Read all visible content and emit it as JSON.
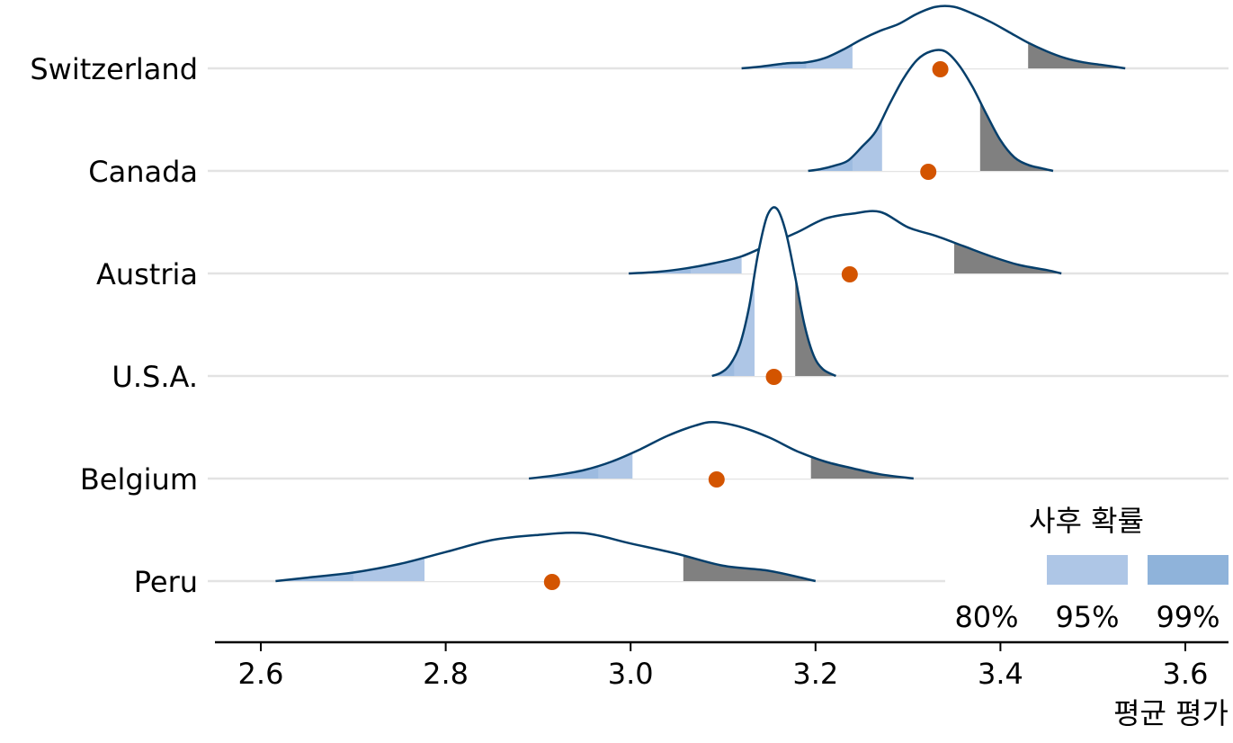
{
  "chart_data": {
    "type": "ridgeline",
    "title": "",
    "xlabel": "평균 평가",
    "ylabel": "",
    "xlim": [
      2.55,
      3.65
    ],
    "xticks": [
      2.6,
      2.8,
      3.0,
      3.2,
      3.4,
      3.6
    ],
    "xtick_labels": [
      "2.6",
      "2.8",
      "3.0",
      "3.2",
      "3.4",
      "3.6"
    ],
    "grid": false,
    "legend": {
      "title": "사후 확률",
      "placement": "bottom-right",
      "entries": [
        {
          "label": "80%",
          "color": "#ffffff"
        },
        {
          "label": "95%",
          "color": "#aec6e6"
        },
        {
          "label": "99%",
          "color": "#8fb3da"
        }
      ]
    },
    "colors": {
      "curve": "#063f6b",
      "tail_low": "#aec6e6",
      "tail_low_outer": "#8fb3da",
      "tail_high": "#808080",
      "point": "#d35400",
      "baseline": "#e3e3e3",
      "axis": "#000000"
    },
    "rows": [
      {
        "name": "Switzerland",
        "point": 3.335,
        "low": 3.24,
        "high": 3.43,
        "low_outer": 3.19,
        "density": [
          [
            3.12,
            0
          ],
          [
            3.14,
            0.01
          ],
          [
            3.17,
            0.03
          ],
          [
            3.19,
            0.035
          ],
          [
            3.21,
            0.06
          ],
          [
            3.23,
            0.11
          ],
          [
            3.25,
            0.17
          ],
          [
            3.27,
            0.22
          ],
          [
            3.29,
            0.26
          ],
          [
            3.31,
            0.32
          ],
          [
            3.33,
            0.36
          ],
          [
            3.35,
            0.36
          ],
          [
            3.37,
            0.32
          ],
          [
            3.39,
            0.27
          ],
          [
            3.41,
            0.21
          ],
          [
            3.43,
            0.15
          ],
          [
            3.45,
            0.1
          ],
          [
            3.47,
            0.06
          ],
          [
            3.49,
            0.035
          ],
          [
            3.51,
            0.02
          ],
          [
            3.535,
            0
          ]
        ]
      },
      {
        "name": "Canada",
        "point": 3.322,
        "low": 3.272,
        "high": 3.378,
        "low_outer": 3.24,
        "density": [
          [
            3.192,
            0
          ],
          [
            3.205,
            0.01
          ],
          [
            3.22,
            0.03
          ],
          [
            3.235,
            0.06
          ],
          [
            3.25,
            0.14
          ],
          [
            3.265,
            0.23
          ],
          [
            3.28,
            0.39
          ],
          [
            3.295,
            0.54
          ],
          [
            3.31,
            0.65
          ],
          [
            3.325,
            0.7
          ],
          [
            3.34,
            0.7
          ],
          [
            3.355,
            0.62
          ],
          [
            3.37,
            0.49
          ],
          [
            3.385,
            0.33
          ],
          [
            3.4,
            0.18
          ],
          [
            3.415,
            0.08
          ],
          [
            3.43,
            0.035
          ],
          [
            3.445,
            0.015
          ],
          [
            3.457,
            0
          ]
        ]
      },
      {
        "name": "Austria",
        "point": 3.237,
        "low": 3.12,
        "high": 3.35,
        "low_outer": 3.065,
        "density": [
          [
            2.998,
            0
          ],
          [
            3.03,
            0.01
          ],
          [
            3.06,
            0.03
          ],
          [
            3.09,
            0.06
          ],
          [
            3.12,
            0.1
          ],
          [
            3.15,
            0.17
          ],
          [
            3.18,
            0.24
          ],
          [
            3.21,
            0.32
          ],
          [
            3.24,
            0.35
          ],
          [
            3.27,
            0.36
          ],
          [
            3.3,
            0.27
          ],
          [
            3.33,
            0.22
          ],
          [
            3.36,
            0.16
          ],
          [
            3.39,
            0.1
          ],
          [
            3.42,
            0.05
          ],
          [
            3.45,
            0.02
          ],
          [
            3.466,
            0
          ]
        ]
      },
      {
        "name": "U.S.A.",
        "point": 3.155,
        "low": 3.134,
        "high": 3.178,
        "low_outer": 3.112,
        "density": [
          [
            3.088,
            0
          ],
          [
            3.098,
            0.02
          ],
          [
            3.108,
            0.07
          ],
          [
            3.118,
            0.18
          ],
          [
            3.128,
            0.4
          ],
          [
            3.138,
            0.72
          ],
          [
            3.148,
            0.94
          ],
          [
            3.158,
            0.98
          ],
          [
            3.168,
            0.84
          ],
          [
            3.178,
            0.58
          ],
          [
            3.188,
            0.3
          ],
          [
            3.198,
            0.12
          ],
          [
            3.208,
            0.04
          ],
          [
            3.222,
            0
          ]
        ]
      },
      {
        "name": "Belgium",
        "point": 3.093,
        "low": 3.002,
        "high": 3.195,
        "low_outer": 2.965,
        "density": [
          [
            2.89,
            0
          ],
          [
            2.92,
            0.02
          ],
          [
            2.95,
            0.05
          ],
          [
            2.98,
            0.1
          ],
          [
            3.01,
            0.17
          ],
          [
            3.04,
            0.25
          ],
          [
            3.07,
            0.31
          ],
          [
            3.09,
            0.33
          ],
          [
            3.12,
            0.3
          ],
          [
            3.15,
            0.24
          ],
          [
            3.18,
            0.16
          ],
          [
            3.21,
            0.1
          ],
          [
            3.24,
            0.06
          ],
          [
            3.27,
            0.025
          ],
          [
            3.306,
            0
          ]
        ]
      },
      {
        "name": "Peru",
        "point": 2.915,
        "low": 2.777,
        "high": 3.057,
        "low_outer": 2.7,
        "density": [
          [
            2.616,
            0
          ],
          [
            2.65,
            0.02
          ],
          [
            2.7,
            0.05
          ],
          [
            2.75,
            0.1
          ],
          [
            2.8,
            0.17
          ],
          [
            2.85,
            0.24
          ],
          [
            2.9,
            0.27
          ],
          [
            2.95,
            0.28
          ],
          [
            3.0,
            0.22
          ],
          [
            3.05,
            0.16
          ],
          [
            3.1,
            0.09
          ],
          [
            3.15,
            0.06
          ],
          [
            3.2,
            0
          ]
        ]
      }
    ]
  }
}
